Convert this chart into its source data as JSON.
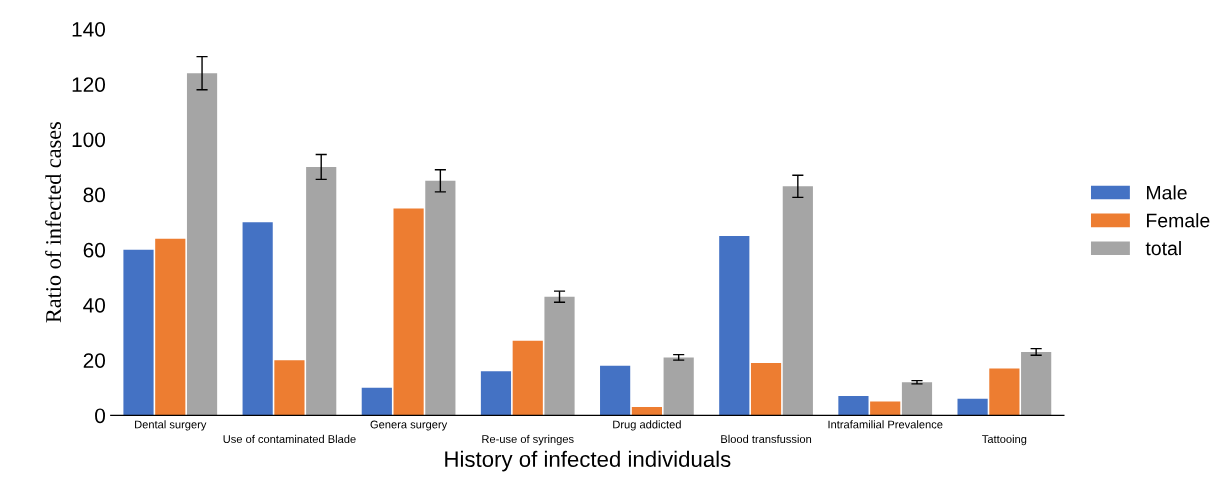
{
  "chart_data": {
    "type": "bar",
    "xlabel": "History of infected individuals",
    "ylabel": "Ratio of infected cases",
    "categories": [
      "Dental surgery",
      "Use of contaminated Blade",
      "Genera surgery",
      "Re-use of syringes",
      "Drug addicted",
      "Blood transfussion",
      "Intrafamilial Prevalence",
      "Tattooing"
    ],
    "series": [
      {
        "name": "Male",
        "color": "#4472c4",
        "values": [
          60,
          70,
          10,
          16,
          18,
          65,
          7,
          6
        ]
      },
      {
        "name": "Female",
        "color": "#ed7d31",
        "values": [
          64,
          20,
          75,
          27,
          3,
          19,
          5,
          17
        ]
      },
      {
        "name": "total",
        "color": "#a5a5a5",
        "values": [
          124,
          90,
          85,
          43,
          21,
          83,
          12,
          23
        ],
        "errors": [
          6,
          4.5,
          4,
          2,
          1,
          4,
          0.6,
          1.2
        ]
      }
    ],
    "ylim": [
      0,
      140
    ],
    "yticks": [
      0,
      20,
      40,
      60,
      80,
      100,
      120,
      140
    ],
    "grid": false,
    "legend": "right"
  }
}
